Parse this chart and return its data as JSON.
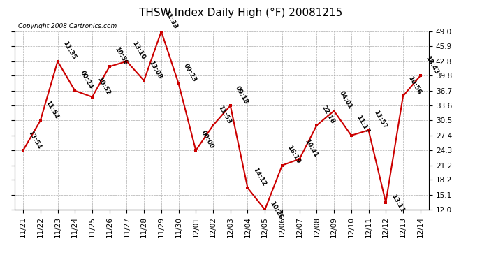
{
  "title": "THSW Index Daily High (°F) 20081215",
  "copyright": "Copyright 2008 Cartronics.com",
  "labels": [
    "11/21",
    "11/22",
    "11/23",
    "11/24",
    "11/25",
    "11/26",
    "11/27",
    "11/28",
    "11/29",
    "11/30",
    "12/01",
    "12/02",
    "12/03",
    "12/04",
    "12/05",
    "12/06",
    "12/07",
    "12/08",
    "12/09",
    "12/10",
    "12/11",
    "12/12",
    "12/13",
    "12/14"
  ],
  "values": [
    24.3,
    30.5,
    42.8,
    36.7,
    35.4,
    41.7,
    42.8,
    38.8,
    49.0,
    38.2,
    24.3,
    29.5,
    33.6,
    16.5,
    12.0,
    21.2,
    22.5,
    29.5,
    32.5,
    27.4,
    28.5,
    13.5,
    35.6,
    39.8
  ],
  "times": [
    "13:54",
    "11:54",
    "11:35",
    "00:24",
    "10:52",
    "10:56",
    "13:10",
    "13:08",
    "11:33",
    "09:23",
    "00:00",
    "11:53",
    "09:18",
    "14:12",
    "10:26",
    "16:19",
    "10:41",
    "22:18",
    "04:01",
    "11:17",
    "11:57",
    "13:11",
    "10:56",
    "18:43"
  ],
  "ylim": [
    12.0,
    49.0
  ],
  "yticks": [
    12.0,
    15.1,
    18.2,
    21.2,
    24.3,
    27.4,
    30.5,
    33.6,
    36.7,
    39.8,
    42.8,
    45.9,
    49.0
  ],
  "line_color": "#cc0000",
  "marker_color": "#cc0000",
  "bg_color": "#ffffff",
  "grid_color": "#999999",
  "title_fontsize": 11,
  "tick_fontsize": 7.5,
  "annot_fontsize": 6.5
}
